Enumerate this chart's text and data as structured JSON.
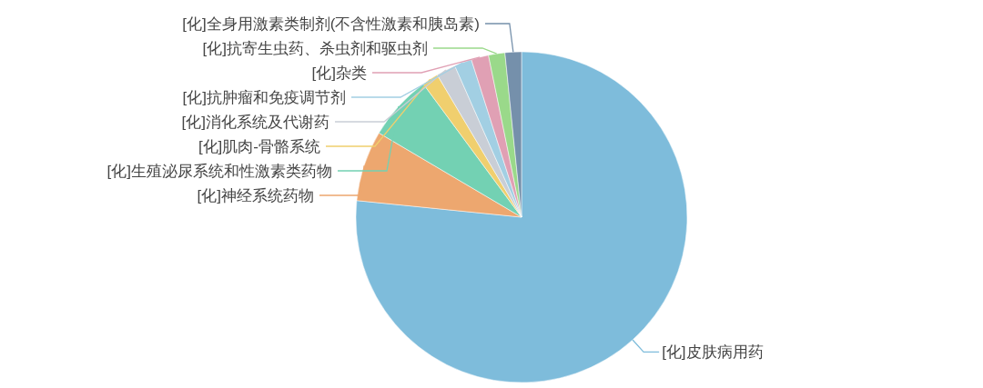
{
  "chart_data": {
    "type": "pie",
    "categories": [
      "[化]皮肤病用药",
      "[化]神经系统药物",
      "[化]生殖泌尿系统和性激素类药物",
      "[化]肌肉-骨骼系统",
      "[化]消化系统及代谢药",
      "[化]抗肿瘤和免疫调节剂",
      "[化]杂类",
      "[化]抗寄生虫药、杀虫剂和驱虫剂",
      "[化]全身用激素类制剂(不含性激素和胰岛素)"
    ],
    "values": [
      76.6,
      6.9,
      6.4,
      1.6,
      1.9,
      1.7,
      1.7,
      1.6,
      1.6
    ],
    "colors": [
      "#7ebcdb",
      "#eda76f",
      "#73d1b3",
      "#f0cf6e",
      "#c9ced6",
      "#a2cfe3",
      "#e0a0b4",
      "#9ad98a",
      "#7590ab"
    ]
  }
}
